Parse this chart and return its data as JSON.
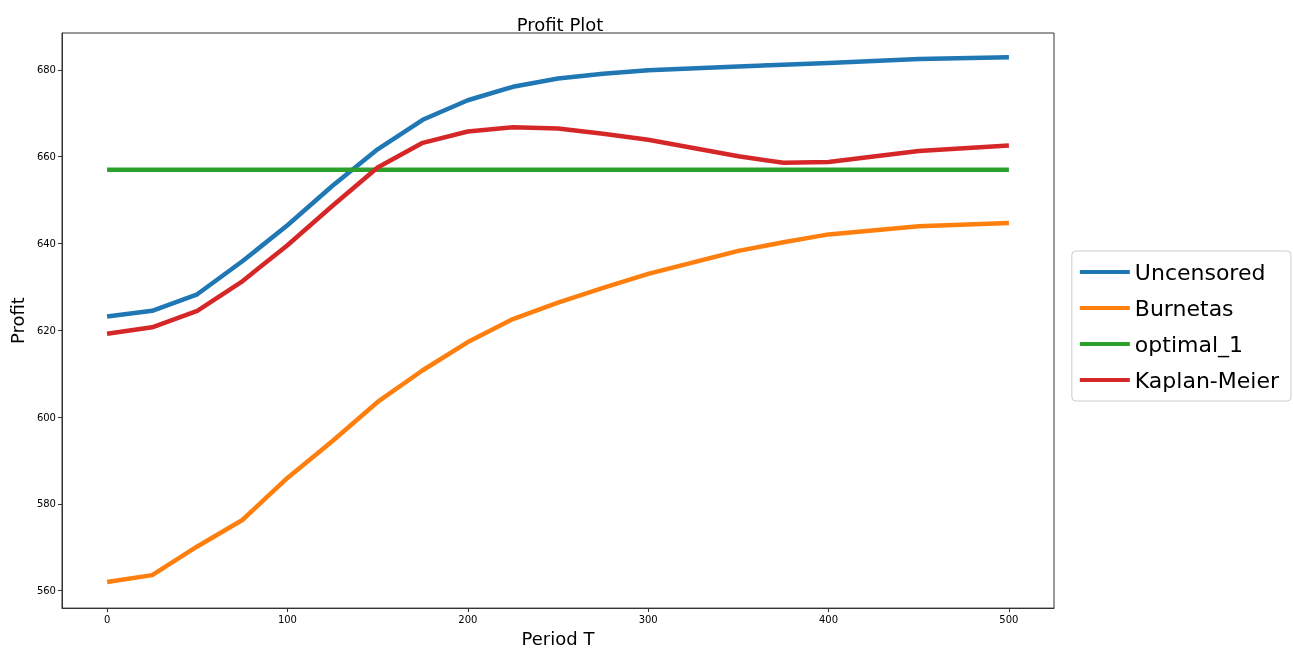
{
  "chart_data": {
    "type": "line",
    "title": "Profit Plot",
    "xlabel": "Period T",
    "ylabel": "Profit",
    "x": [
      0,
      25,
      50,
      75,
      100,
      125,
      150,
      175,
      200,
      225,
      250,
      275,
      300,
      350,
      375,
      400,
      450,
      500
    ],
    "series": [
      {
        "name": "Uncensored",
        "color": "#1f77b4",
        "values": [
          623.2,
          624.5,
          628.3,
          635.9,
          644.2,
          653.3,
          661.7,
          668.5,
          673.0,
          676.1,
          678.0,
          679.1,
          679.9,
          680.8,
          681.2,
          681.6,
          682.5,
          682.9
        ]
      },
      {
        "name": "Burnetas",
        "color": "#ff7f0e",
        "values": [
          562.0,
          563.6,
          570.2,
          576.3,
          586.0,
          594.5,
          603.5,
          610.8,
          617.3,
          622.6,
          626.4,
          629.8,
          633.0,
          638.3,
          640.3,
          642.1,
          644.0,
          644.7
        ]
      },
      {
        "name": "optimal_1",
        "color": "#2ca02c",
        "values": [
          657,
          657,
          657,
          657,
          657,
          657,
          657,
          657,
          657,
          657,
          657,
          657,
          657,
          657,
          657,
          657,
          657,
          657
        ]
      },
      {
        "name": "Kaplan-Meier",
        "color": "#d62728",
        "values": [
          619.2,
          620.7,
          624.5,
          631.3,
          639.6,
          648.7,
          657.5,
          663.2,
          665.8,
          666.8,
          666.5,
          665.3,
          663.9,
          660.1,
          658.6,
          658.8,
          661.3,
          662.6
        ]
      }
    ],
    "xlim": [
      -25,
      525
    ],
    "ylim": [
      556,
      688.5
    ],
    "xticks": [
      0,
      100,
      200,
      300,
      400,
      500
    ],
    "yticks": [
      560,
      580,
      600,
      620,
      640,
      660,
      680
    ],
    "grid": false,
    "legend": "right",
    "marker": "none",
    "line_style": "solid"
  }
}
